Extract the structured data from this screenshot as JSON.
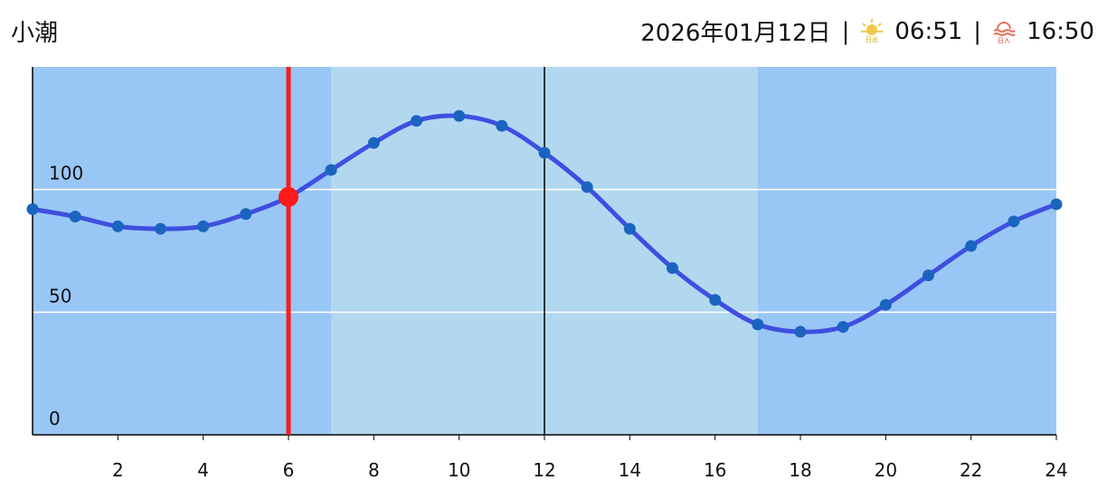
{
  "header": {
    "tide_name": "小潮",
    "date": "2026年01月12日",
    "separator": "|",
    "sunrise_icon": "日出",
    "sunrise": "06:51",
    "sunset_icon": "日入",
    "sunset": "16:50"
  },
  "chart_data": {
    "type": "line",
    "x": [
      0,
      1,
      2,
      3,
      4,
      5,
      6,
      7,
      8,
      9,
      10,
      11,
      12,
      13,
      14,
      15,
      16,
      17,
      18,
      19,
      20,
      21,
      22,
      23,
      24
    ],
    "values": [
      92,
      89,
      85,
      84,
      85,
      90,
      97,
      108,
      119,
      128,
      130,
      126,
      115,
      101,
      84,
      68,
      55,
      45,
      42,
      44,
      53,
      65,
      77,
      87,
      94
    ],
    "color": "#3f4fe0",
    "marker_color": "#1a64c0",
    "xlim": [
      0,
      24
    ],
    "xticks": [
      2,
      4,
      6,
      8,
      10,
      12,
      14,
      16,
      18,
      20,
      22,
      24
    ],
    "ylim": [
      0,
      150
    ],
    "yticks": [
      0,
      50,
      100
    ],
    "grid": true,
    "daylight": [
      7,
      17
    ],
    "night_color": "#99c7f5",
    "day_color": "#b2d8f0",
    "vertical_lines": [
      12
    ],
    "current": {
      "x": 6,
      "value": 97,
      "color": "#ff1a1a"
    }
  }
}
